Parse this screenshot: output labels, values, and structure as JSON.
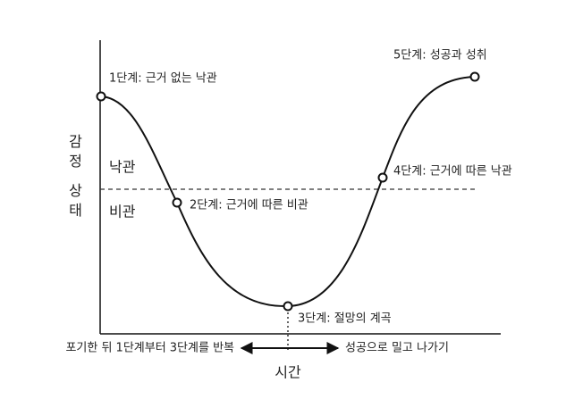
{
  "axes": {
    "y_label": "감정 상태",
    "x_label": "시간",
    "upper_region": "낙관",
    "lower_region": "비관",
    "x_left": "포기한 뒤 1단계부터 3단계를 반복",
    "x_right": "성공으로 밀고 나가기"
  },
  "stages": [
    {
      "label": "1단계: 근거 없는 낙관"
    },
    {
      "label": "2단계: 근거에 따른 비관"
    },
    {
      "label": "3단계: 절망의 계곡"
    },
    {
      "label": "4단계: 근거에 따른 낙관"
    },
    {
      "label": "5단계: 성공과 성취"
    }
  ]
}
